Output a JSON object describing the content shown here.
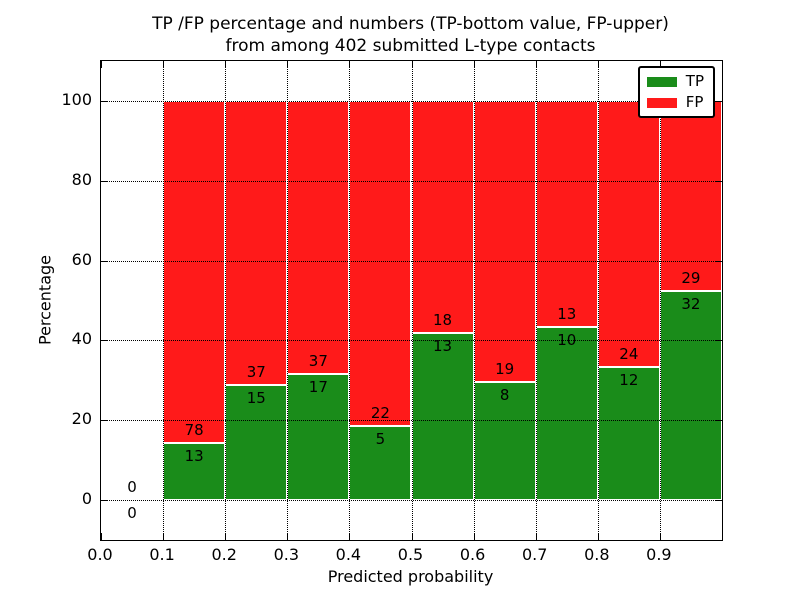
{
  "header": {
    "title_line1": "TP /FP percentage and numbers (TP-bottom value, FP-upper)",
    "title_line2": "from among 402 submitted L-type contacts"
  },
  "chart_data": {
    "type": "bar",
    "stacked": true,
    "normalized_to_100_percent": true,
    "title": "TP /FP percentage and numbers (TP-bottom value, FP-upper)\nfrom among 402 submitted L-type contacts",
    "xlabel": "Predicted probability",
    "ylabel": "Percentage",
    "xlim": [
      0.0,
      1.0
    ],
    "ylim": [
      -10,
      110
    ],
    "xtick_labels": [
      "0.0",
      "0.1",
      "0.2",
      "0.3",
      "0.4",
      "0.5",
      "0.6",
      "0.7",
      "0.8",
      "0.9"
    ],
    "ytick_values": [
      0,
      20,
      40,
      60,
      80,
      100
    ],
    "grid": {
      "visible": true,
      "style": "dotted",
      "color": "#000000",
      "axes": "both"
    },
    "bin_width": 0.1,
    "total_contacts": 402,
    "series": [
      {
        "name": "TP",
        "color": "#1A8C1A"
      },
      {
        "name": "FP",
        "color": "#FF1A1A"
      }
    ],
    "legend_position": "upper right",
    "bins": [
      {
        "x_start": 0.0,
        "x_end": 0.1,
        "tp": 0,
        "fp": 0
      },
      {
        "x_start": 0.1,
        "x_end": 0.2,
        "tp": 13,
        "fp": 78
      },
      {
        "x_start": 0.2,
        "x_end": 0.3,
        "tp": 15,
        "fp": 37
      },
      {
        "x_start": 0.3,
        "x_end": 0.4,
        "tp": 17,
        "fp": 37
      },
      {
        "x_start": 0.4,
        "x_end": 0.5,
        "tp": 5,
        "fp": 22
      },
      {
        "x_start": 0.5,
        "x_end": 0.6,
        "tp": 13,
        "fp": 18
      },
      {
        "x_start": 0.6,
        "x_end": 0.7,
        "tp": 8,
        "fp": 19
      },
      {
        "x_start": 0.7,
        "x_end": 0.8,
        "tp": 10,
        "fp": 13
      },
      {
        "x_start": 0.8,
        "x_end": 0.9,
        "tp": 12,
        "fp": 24
      },
      {
        "x_start": 0.9,
        "x_end": 1.0,
        "tp": 32,
        "fp": 29
      }
    ]
  },
  "colors": {
    "tp_green": "#1A8C1A",
    "fp_red": "#FF1A1A",
    "background": "#FFFFFF",
    "axis": "#000000"
  }
}
